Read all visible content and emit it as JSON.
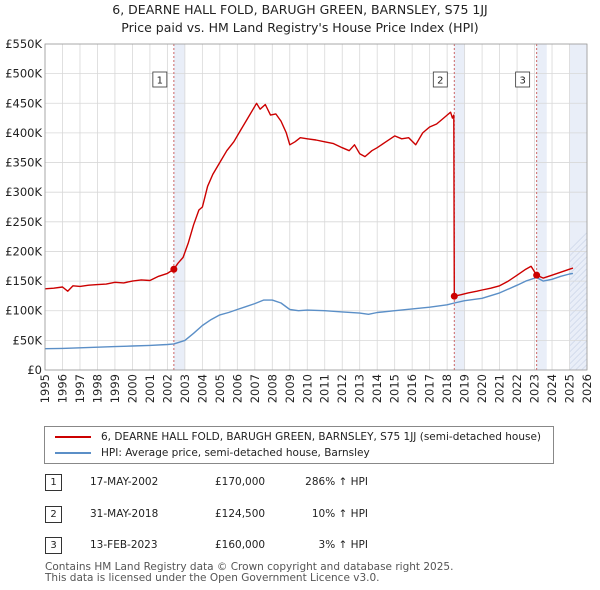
{
  "title_line1": "6, DEARNE HALL FOLD, BARUGH GREEN, BARNSLEY, S75 1JJ",
  "title_line2": "Price paid vs. HM Land Registry's House Price Index (HPI)",
  "colors": {
    "property": "#cc0000",
    "hpi": "#5b8fc7",
    "shade": "#e9eef8",
    "marker_line": "#cc6666"
  },
  "legend": {
    "property_label": "6, DEARNE HALL FOLD, BARUGH GREEN, BARNSLEY, S75 1JJ (semi-detached house)",
    "hpi_label": "HPI: Average price, semi-detached house, Barnsley"
  },
  "sales": [
    {
      "num": "1",
      "date": "17-MAY-2002",
      "price": "£170,000",
      "hpi": "286% ↑ HPI"
    },
    {
      "num": "2",
      "date": "31-MAY-2018",
      "price": "£124,500",
      "hpi": "10% ↑ HPI"
    },
    {
      "num": "3",
      "date": "13-FEB-2023",
      "price": "£160,000",
      "hpi": "3% ↑ HPI"
    }
  ],
  "footer": {
    "line1": "Contains HM Land Registry data © Crown copyright and database right 2025.",
    "line2": "This data is licensed under the Open Government Licence v3.0."
  },
  "chart_data": {
    "type": "line",
    "title": "Price paid vs. HM Land Registry's House Price Index (HPI)",
    "xlim": [
      1995,
      2026
    ],
    "ylim": [
      0,
      550000
    ],
    "x_ticks": [
      "1995",
      "1996",
      "1997",
      "1998",
      "1999",
      "2000",
      "2001",
      "2002",
      "2003",
      "2004",
      "2005",
      "2006",
      "2007",
      "2008",
      "2009",
      "2010",
      "2011",
      "2012",
      "2013",
      "2014",
      "2015",
      "2016",
      "2017",
      "2018",
      "2019",
      "2020",
      "2021",
      "2022",
      "2023",
      "2024",
      "2025",
      "2026"
    ],
    "y_ticks": [
      {
        "value": 0,
        "label": "£0"
      },
      {
        "value": 50000,
        "label": "£50K"
      },
      {
        "value": 100000,
        "label": "£100K"
      },
      {
        "value": 150000,
        "label": "£150K"
      },
      {
        "value": 200000,
        "label": "£200K"
      },
      {
        "value": 250000,
        "label": "£250K"
      },
      {
        "value": 300000,
        "label": "£300K"
      },
      {
        "value": 350000,
        "label": "£350K"
      },
      {
        "value": 400000,
        "label": "£400K"
      },
      {
        "value": 450000,
        "label": "£450K"
      },
      {
        "value": 500000,
        "label": "£500K"
      },
      {
        "value": 550000,
        "label": "£550K"
      }
    ],
    "shaded_ranges": [
      [
        2002.37,
        2003.0
      ],
      [
        2018.41,
        2019.0
      ],
      [
        2023.12,
        2023.7
      ]
    ],
    "future_from": 2025.0,
    "markers": [
      {
        "label": "1",
        "x": 2002.37,
        "y": 170000
      },
      {
        "label": "2",
        "x": 2018.41,
        "y": 124500
      },
      {
        "label": "3",
        "x": 2023.12,
        "y": 160000
      }
    ],
    "series": [
      {
        "name": "6, DEARNE HALL FOLD, BARUGH GREEN, BARNSLEY, S75 1JJ (semi-detached house)",
        "color": "#cc0000",
        "points": [
          [
            1995.0,
            137000
          ],
          [
            1995.5,
            138000
          ],
          [
            1996.0,
            140000
          ],
          [
            1996.3,
            133000
          ],
          [
            1996.6,
            142000
          ],
          [
            1997.0,
            141000
          ],
          [
            1997.5,
            143000
          ],
          [
            1998.0,
            144000
          ],
          [
            1998.5,
            145000
          ],
          [
            1999.0,
            148000
          ],
          [
            1999.5,
            147000
          ],
          [
            2000.0,
            150000
          ],
          [
            2000.5,
            152000
          ],
          [
            2001.0,
            151000
          ],
          [
            2001.5,
            158000
          ],
          [
            2002.0,
            163000
          ],
          [
            2002.37,
            170000
          ],
          [
            2002.6,
            180000
          ],
          [
            2002.9,
            190000
          ],
          [
            2003.2,
            215000
          ],
          [
            2003.5,
            245000
          ],
          [
            2003.8,
            270000
          ],
          [
            2004.0,
            275000
          ],
          [
            2004.3,
            310000
          ],
          [
            2004.6,
            330000
          ],
          [
            2005.0,
            350000
          ],
          [
            2005.4,
            370000
          ],
          [
            2005.8,
            385000
          ],
          [
            2006.2,
            405000
          ],
          [
            2006.6,
            425000
          ],
          [
            2006.9,
            440000
          ],
          [
            2007.1,
            450000
          ],
          [
            2007.3,
            440000
          ],
          [
            2007.6,
            448000
          ],
          [
            2007.9,
            430000
          ],
          [
            2008.2,
            432000
          ],
          [
            2008.5,
            420000
          ],
          [
            2008.8,
            400000
          ],
          [
            2009.0,
            380000
          ],
          [
            2009.3,
            385000
          ],
          [
            2009.6,
            392000
          ],
          [
            2010.0,
            390000
          ],
          [
            2010.5,
            388000
          ],
          [
            2011.0,
            385000
          ],
          [
            2011.5,
            382000
          ],
          [
            2012.0,
            375000
          ],
          [
            2012.4,
            370000
          ],
          [
            2012.7,
            380000
          ],
          [
            2013.0,
            365000
          ],
          [
            2013.3,
            360000
          ],
          [
            2013.7,
            370000
          ],
          [
            2014.0,
            375000
          ],
          [
            2014.5,
            385000
          ],
          [
            2015.0,
            395000
          ],
          [
            2015.4,
            390000
          ],
          [
            2015.8,
            392000
          ],
          [
            2016.2,
            380000
          ],
          [
            2016.6,
            400000
          ],
          [
            2017.0,
            410000
          ],
          [
            2017.4,
            415000
          ],
          [
            2017.8,
            425000
          ],
          [
            2018.0,
            430000
          ],
          [
            2018.2,
            435000
          ],
          [
            2018.3,
            425000
          ],
          [
            2018.38,
            430000
          ],
          [
            2018.41,
            124500
          ],
          [
            2018.8,
            127000
          ],
          [
            2019.2,
            130000
          ],
          [
            2019.7,
            133000
          ],
          [
            2020.0,
            135000
          ],
          [
            2020.5,
            138000
          ],
          [
            2021.0,
            142000
          ],
          [
            2021.5,
            150000
          ],
          [
            2022.0,
            160000
          ],
          [
            2022.5,
            170000
          ],
          [
            2022.8,
            175000
          ],
          [
            2023.12,
            160000
          ],
          [
            2023.5,
            155000
          ],
          [
            2024.0,
            160000
          ],
          [
            2024.5,
            165000
          ],
          [
            2025.0,
            170000
          ],
          [
            2025.2,
            172000
          ]
        ]
      },
      {
        "name": "HPI: Average price, semi-detached house, Barnsley",
        "color": "#5b8fc7",
        "points": [
          [
            1995.0,
            36000
          ],
          [
            1996.0,
            36500
          ],
          [
            1997.0,
            37500
          ],
          [
            1998.0,
            38500
          ],
          [
            1999.0,
            39500
          ],
          [
            2000.0,
            40500
          ],
          [
            2001.0,
            41500
          ],
          [
            2002.0,
            43000
          ],
          [
            2002.37,
            44000
          ],
          [
            2003.0,
            50000
          ],
          [
            2003.5,
            62000
          ],
          [
            2004.0,
            75000
          ],
          [
            2004.5,
            85000
          ],
          [
            2005.0,
            93000
          ],
          [
            2005.5,
            97000
          ],
          [
            2006.0,
            102000
          ],
          [
            2006.5,
            107000
          ],
          [
            2007.0,
            112000
          ],
          [
            2007.5,
            118000
          ],
          [
            2008.0,
            118000
          ],
          [
            2008.5,
            113000
          ],
          [
            2009.0,
            102000
          ],
          [
            2009.5,
            100000
          ],
          [
            2010.0,
            101000
          ],
          [
            2011.0,
            100000
          ],
          [
            2012.0,
            98000
          ],
          [
            2013.0,
            96000
          ],
          [
            2013.5,
            94000
          ],
          [
            2014.0,
            97000
          ],
          [
            2015.0,
            100000
          ],
          [
            2016.0,
            103000
          ],
          [
            2017.0,
            106000
          ],
          [
            2018.0,
            110000
          ],
          [
            2018.41,
            113000
          ],
          [
            2019.0,
            117000
          ],
          [
            2020.0,
            121000
          ],
          [
            2021.0,
            130000
          ],
          [
            2022.0,
            143000
          ],
          [
            2022.5,
            150000
          ],
          [
            2023.12,
            156000
          ],
          [
            2023.5,
            150000
          ],
          [
            2024.0,
            153000
          ],
          [
            2024.5,
            158000
          ],
          [
            2025.0,
            162000
          ],
          [
            2025.2,
            163000
          ]
        ]
      }
    ]
  }
}
